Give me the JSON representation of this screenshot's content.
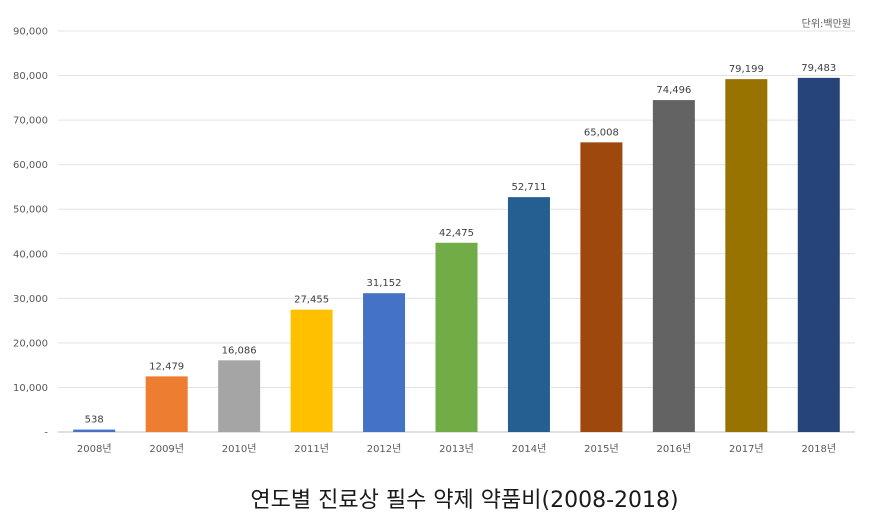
{
  "unit_label": "단위:백만원",
  "caption": "연도별 진료상 필수 약제 약품비(2008-2018)",
  "chart_data": {
    "type": "bar",
    "title": "연도별 진료상 필수 약제 약품비(2008-2018)",
    "categories": [
      "2008년",
      "2009년",
      "2010년",
      "2011년",
      "2012년",
      "2013년",
      "2014년",
      "2015년",
      "2016년",
      "2017년",
      "2018년"
    ],
    "values": [
      538,
      12479,
      16086,
      27455,
      31152,
      42475,
      52711,
      65008,
      74496,
      79199,
      79483
    ],
    "value_labels": [
      "538",
      "12,479",
      "16,086",
      "27,455",
      "31,152",
      "42,475",
      "52,711",
      "65,008",
      "74,496",
      "79,199",
      "79,483"
    ],
    "colors": [
      "#4472C4",
      "#ED7D31",
      "#A5A5A5",
      "#FFC000",
      "#4472C4",
      "#70AD47",
      "#255E91",
      "#9E480E",
      "#636363",
      "#997300",
      "#264478"
    ],
    "ylim": [
      0,
      90000
    ],
    "yticks": [
      "-",
      "10,000",
      "20,000",
      "30,000",
      "40,000",
      "50,000",
      "60,000",
      "70,000",
      "80,000",
      "90,000"
    ],
    "grid": true,
    "xlabel": "",
    "ylabel": ""
  }
}
